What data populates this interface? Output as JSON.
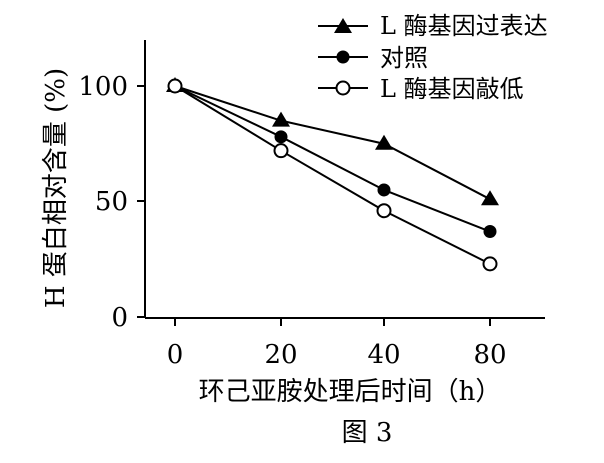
{
  "chart_data": {
    "type": "line",
    "x": [
      "0",
      "20",
      "40",
      "80"
    ],
    "xlabel": "环己亚胺处理后时间（h）",
    "ylabel": "H 蛋白相对含量 (%)",
    "ylim": [
      0,
      120
    ],
    "yticks": [
      "0",
      "50",
      "100"
    ],
    "legend_position": "top-right",
    "series": [
      {
        "name": "L 酶基因过表达",
        "marker": "filled-triangle",
        "values": [
          100,
          85,
          75,
          51
        ]
      },
      {
        "name": "对照",
        "marker": "filled-circle",
        "values": [
          100,
          78,
          55,
          37
        ]
      },
      {
        "name": "L 酶基因敲低",
        "marker": "open-circle",
        "values": [
          100,
          72,
          46,
          23
        ]
      }
    ],
    "caption": "图 3"
  }
}
